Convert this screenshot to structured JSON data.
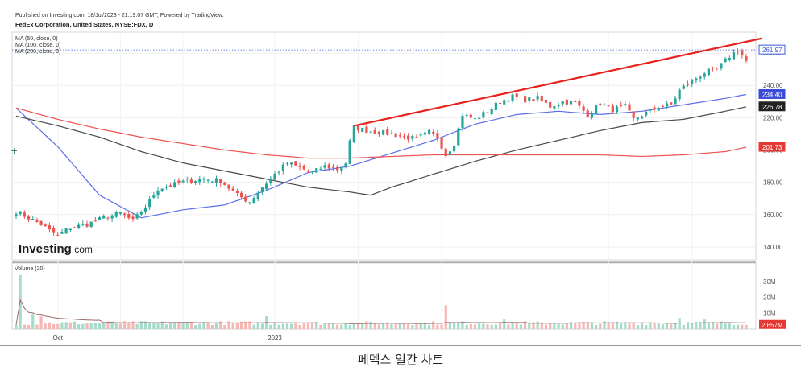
{
  "header": {
    "published": "Published on Investing.com, 18/Jul/2023 - 21:19:07 GMT, Powered by TradingView.",
    "instrument": "FedEx Corporation, United States, NYSE:FDX, D"
  },
  "legend": [
    "MA (50, close, 0)",
    "MA (100, close, 0)",
    "MA (200, close, 0)"
  ],
  "watermark": {
    "brand": "Investing",
    "suffix": ".com"
  },
  "caption": "페덱스 일간 차트",
  "colors": {
    "up": "#26a69a",
    "down": "#ef5350",
    "trendline": "#e8211d",
    "ma50": "#5b6ee8",
    "ma100": "#4a4a4a",
    "ma200": "#ef5350",
    "last_price": "#5b6ee8",
    "volume_up": "#a5dcc9",
    "volume_down": "#f6b8b5"
  },
  "chart_data": {
    "type": "candlestick",
    "ylim": [
      132,
      273
    ],
    "yticks": [
      140,
      160,
      180,
      200,
      220,
      240,
      260
    ],
    "x_labels": [
      {
        "label": "Oct",
        "index": 10
      },
      {
        "label": "2023",
        "index": 62
      }
    ],
    "price_labels": [
      {
        "name": "last",
        "text": "261.97",
        "value": 261.97,
        "color": "#3b5bdb",
        "style": "outline"
      },
      {
        "name": "ma50",
        "text": "234.40",
        "value": 234.4,
        "color": "#3b4bd8",
        "style": "fill"
      },
      {
        "name": "ma100",
        "text": "226.78",
        "value": 226.78,
        "color": "#222222",
        "style": "fill"
      },
      {
        "name": "ma200",
        "text": "201.73",
        "value": 201.73,
        "color": "#e53935",
        "style": "fill"
      }
    ],
    "trendline": {
      "from": {
        "index": 81,
        "value": 215
      },
      "to": {
        "index": 175,
        "value": 267
      }
    },
    "waypoints": [
      [
        0,
        162
      ],
      [
        3,
        158
      ],
      [
        6,
        154
      ],
      [
        8,
        150
      ],
      [
        10,
        147
      ],
      [
        13,
        152
      ],
      [
        17,
        154
      ],
      [
        21,
        158
      ],
      [
        25,
        161
      ],
      [
        28,
        156
      ],
      [
        31,
        165
      ],
      [
        34,
        176
      ],
      [
        37,
        178
      ],
      [
        41,
        181
      ],
      [
        45,
        182
      ],
      [
        49,
        181
      ],
      [
        53,
        172
      ],
      [
        56,
        168
      ],
      [
        59,
        177
      ],
      [
        62,
        185
      ],
      [
        65,
        192
      ],
      [
        68,
        189
      ],
      [
        71,
        186
      ],
      [
        74,
        190
      ],
      [
        77,
        188
      ],
      [
        79,
        192
      ],
      [
        80,
        205
      ],
      [
        81,
        214
      ],
      [
        84,
        212
      ],
      [
        87,
        211
      ],
      [
        90,
        210
      ],
      [
        93,
        208
      ],
      [
        96,
        207
      ],
      [
        99,
        211
      ],
      [
        101,
        208
      ],
      [
        103,
        197
      ],
      [
        105,
        204
      ],
      [
        107,
        222
      ],
      [
        110,
        219
      ],
      [
        113,
        224
      ],
      [
        116,
        230
      ],
      [
        119,
        233
      ],
      [
        122,
        231
      ],
      [
        125,
        232
      ],
      [
        128,
        227
      ],
      [
        131,
        230
      ],
      [
        134,
        229
      ],
      [
        137,
        222
      ],
      [
        140,
        229
      ],
      [
        143,
        225
      ],
      [
        146,
        227
      ],
      [
        148,
        219
      ],
      [
        151,
        223
      ],
      [
        154,
        227
      ],
      [
        157,
        228
      ],
      [
        159,
        237
      ],
      [
        162,
        243
      ],
      [
        165,
        248
      ],
      [
        168,
        250
      ],
      [
        171,
        258
      ],
      [
        173,
        262
      ],
      [
        175,
        255
      ]
    ],
    "moving_averages": {
      "ma50": [
        [
          0,
          226
        ],
        [
          10,
          202
        ],
        [
          20,
          172
        ],
        [
          30,
          158
        ],
        [
          40,
          163
        ],
        [
          50,
          166
        ],
        [
          60,
          175
        ],
        [
          70,
          186
        ],
        [
          80,
          190
        ],
        [
          90,
          198
        ],
        [
          100,
          206
        ],
        [
          110,
          216
        ],
        [
          120,
          222
        ],
        [
          130,
          224
        ],
        [
          140,
          222
        ],
        [
          150,
          224
        ],
        [
          160,
          228
        ],
        [
          170,
          232
        ],
        [
          175,
          234.4
        ]
      ],
      "ma100": [
        [
          0,
          221
        ],
        [
          10,
          215
        ],
        [
          20,
          208
        ],
        [
          30,
          199
        ],
        [
          40,
          192
        ],
        [
          50,
          187
        ],
        [
          60,
          182
        ],
        [
          70,
          177
        ],
        [
          80,
          174
        ],
        [
          85,
          172
        ],
        [
          90,
          177
        ],
        [
          100,
          185
        ],
        [
          110,
          193
        ],
        [
          120,
          200
        ],
        [
          130,
          206
        ],
        [
          140,
          212
        ],
        [
          150,
          217
        ],
        [
          160,
          219
        ],
        [
          170,
          224
        ],
        [
          175,
          226.78
        ]
      ],
      "ma200": [
        [
          0,
          226
        ],
        [
          10,
          219
        ],
        [
          20,
          213
        ],
        [
          30,
          208
        ],
        [
          40,
          204
        ],
        [
          50,
          200
        ],
        [
          60,
          197
        ],
        [
          70,
          195
        ],
        [
          80,
          195
        ],
        [
          90,
          196
        ],
        [
          100,
          197
        ],
        [
          110,
          197
        ],
        [
          120,
          197
        ],
        [
          130,
          197
        ],
        [
          140,
          197
        ],
        [
          150,
          196
        ],
        [
          160,
          197
        ],
        [
          170,
          199
        ],
        [
          175,
          201.73
        ]
      ]
    },
    "volume": {
      "title": "Volume (20)",
      "ylim": [
        0,
        40
      ],
      "yticks": [
        {
          "v": 10,
          "label": "10M"
        },
        {
          "v": 20,
          "label": "20M"
        },
        {
          "v": 30,
          "label": "30M"
        }
      ],
      "last_label": "2.657M",
      "last_value": 2.657,
      "spikes": [
        {
          "index": 1,
          "value": 34
        },
        {
          "index": 4,
          "value": 9
        },
        {
          "index": 6,
          "value": 8
        },
        {
          "index": 60,
          "value": 8
        },
        {
          "index": 103,
          "value": 15
        },
        {
          "index": 117,
          "value": 6
        },
        {
          "index": 159,
          "value": 7
        },
        {
          "index": 165,
          "value": 6
        }
      ],
      "baseline": 2.5
    }
  }
}
